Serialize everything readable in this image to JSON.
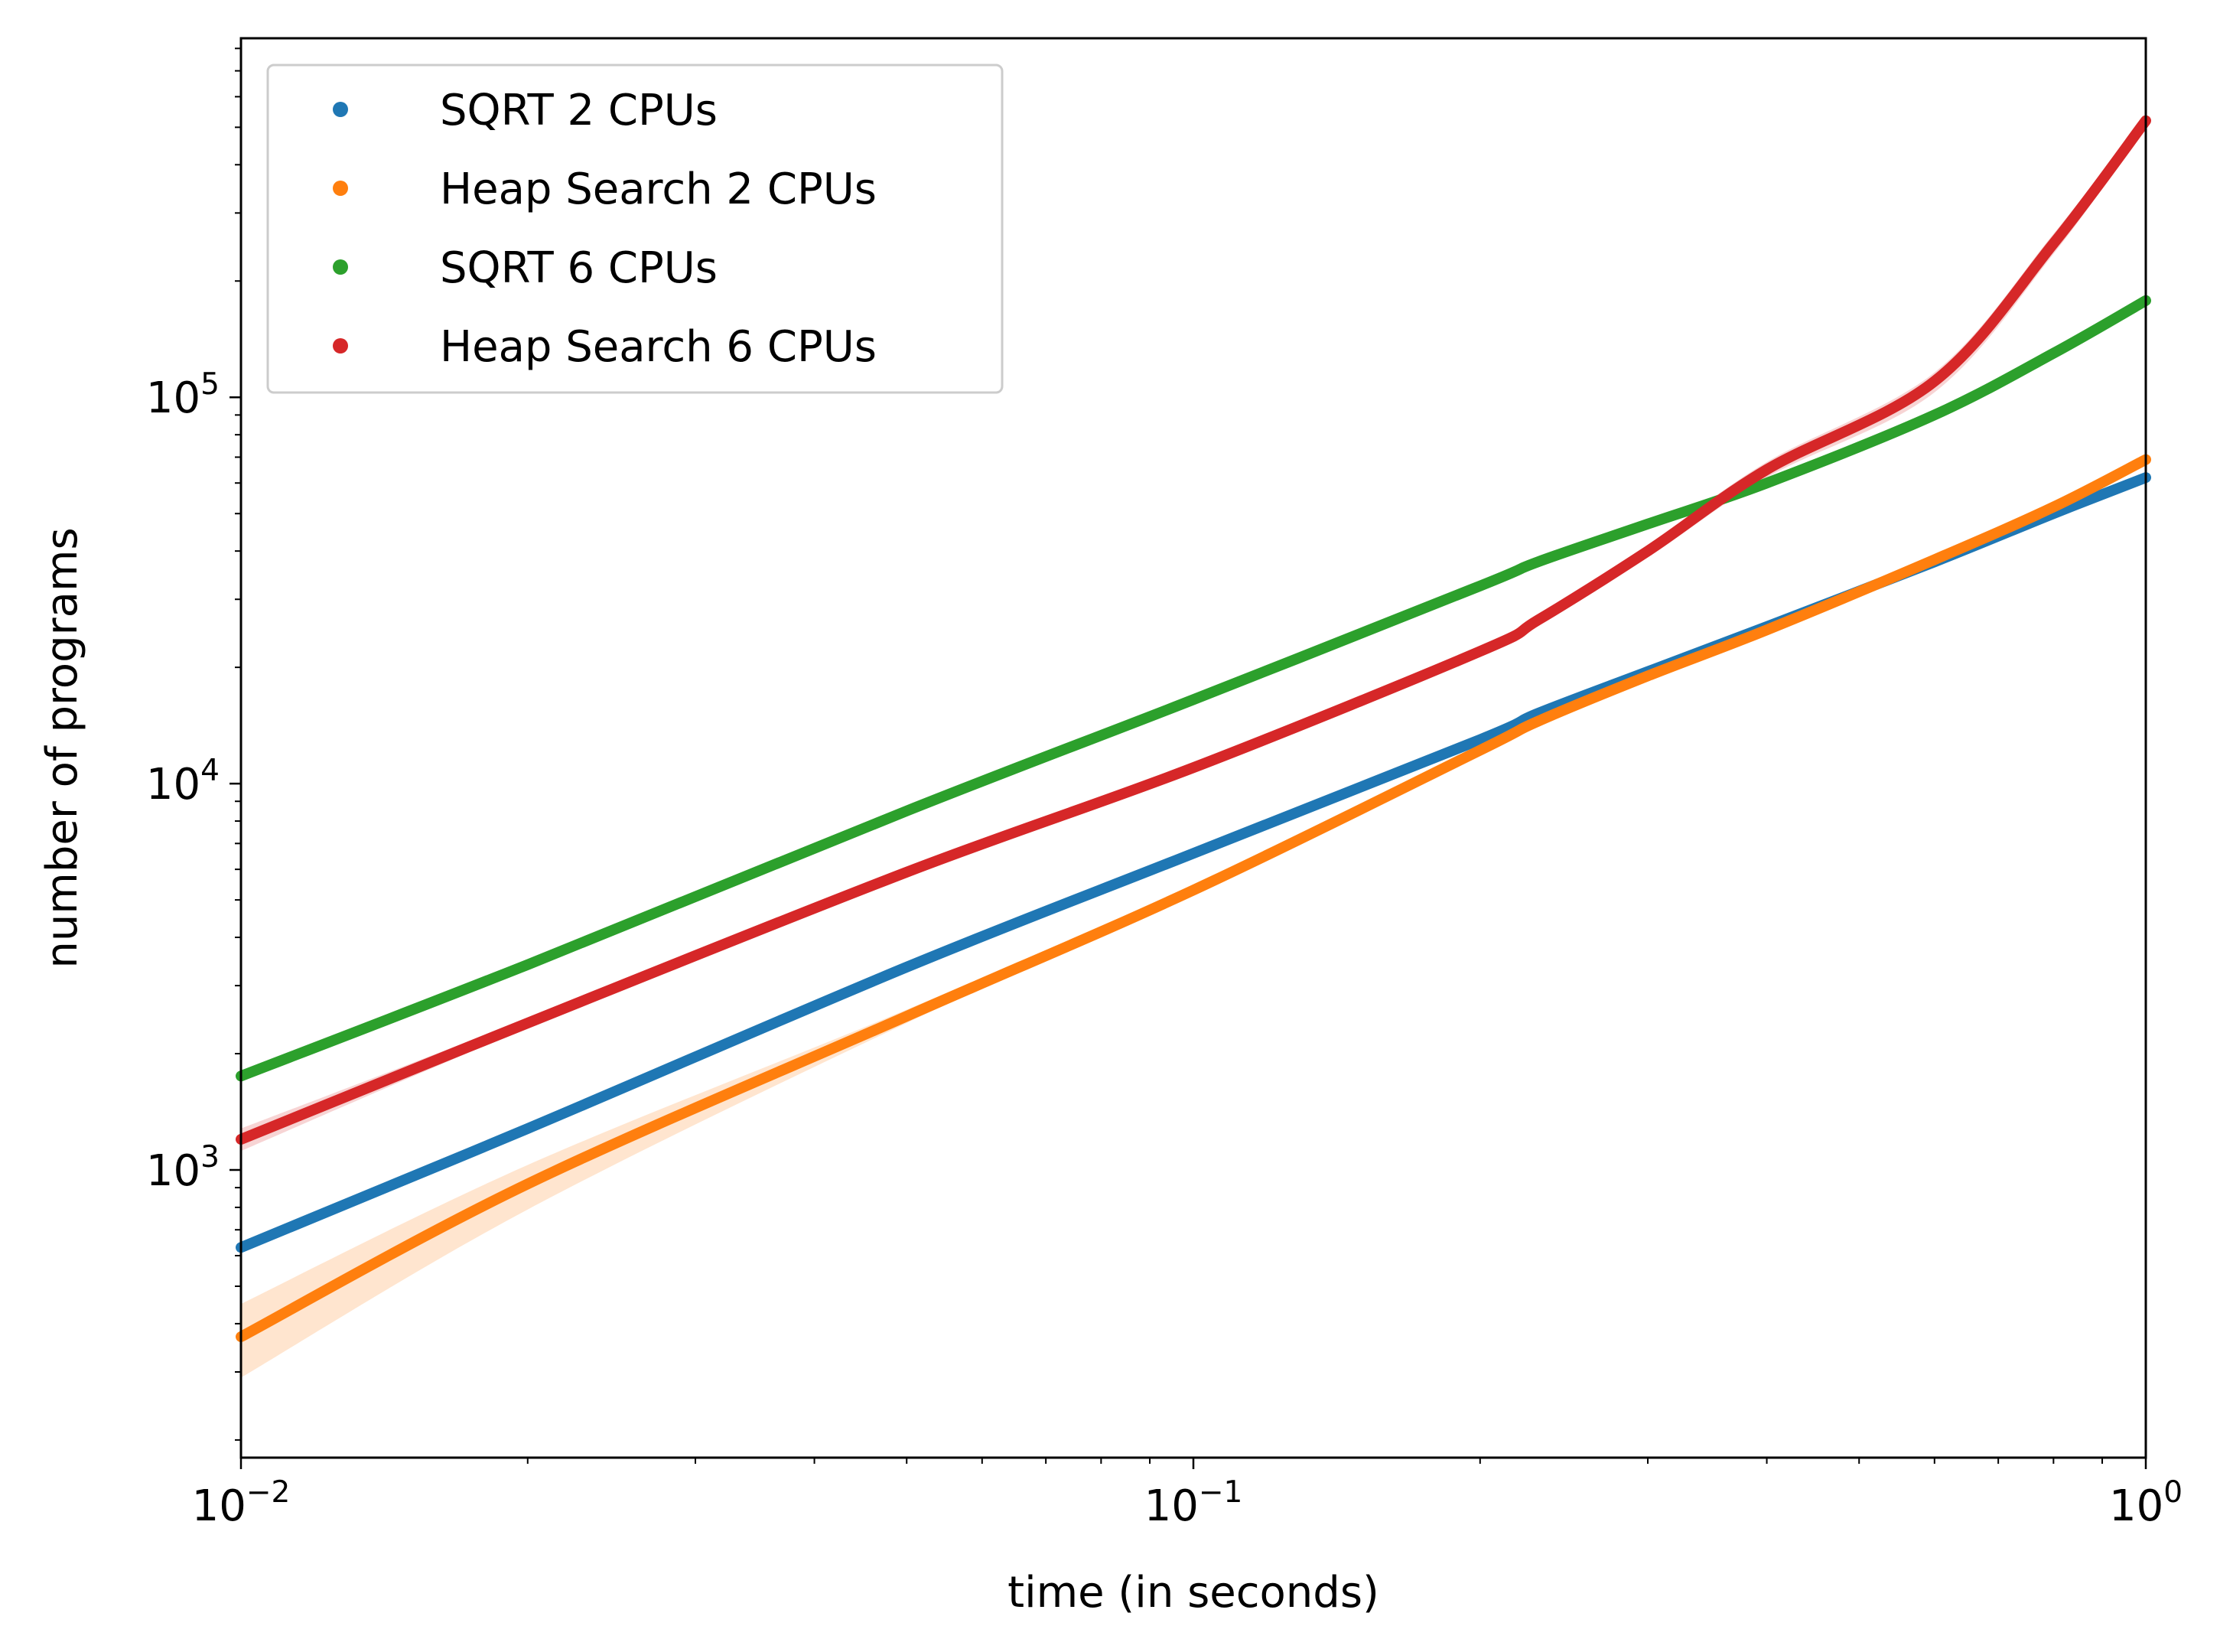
{
  "chart_data": {
    "type": "line",
    "xlabel": "time (in seconds)",
    "ylabel": "number of programs",
    "xscale": "log",
    "yscale": "log",
    "xlim": [
      0.01,
      1
    ],
    "ylim": [
      180,
      850000
    ],
    "grid": false,
    "legend_position": "top-left",
    "x_ticks": [
      {
        "value": 0.01,
        "base": "10",
        "exp": "−2"
      },
      {
        "value": 0.1,
        "base": "10",
        "exp": "−1"
      },
      {
        "value": 1,
        "base": "10",
        "exp": "0"
      }
    ],
    "y_ticks": [
      {
        "value": 1000,
        "base": "10",
        "exp": "3"
      },
      {
        "value": 10000,
        "base": "10",
        "exp": "4"
      },
      {
        "value": 100000,
        "base": "10",
        "exp": "5"
      }
    ],
    "x": [
      0.01,
      0.02,
      0.05,
      0.1,
      0.2,
      0.23,
      0.3,
      0.4,
      0.6,
      0.8,
      1.0
    ],
    "series": [
      {
        "name": "SQRT 2 CPUs",
        "color": "#1f77b4",
        "values": [
          630,
          1280,
          3350,
          6600,
          13000,
          15200,
          19500,
          25500,
          37500,
          50000,
          62000
        ]
      },
      {
        "name": "Heap Search 2 CPUs",
        "color": "#ff7f0e",
        "values": [
          370,
          920,
          2500,
          5300,
          12200,
          14500,
          19000,
          25000,
          38000,
          52000,
          69000
        ]
      },
      {
        "name": "SQRT 6 CPUs",
        "color": "#2ca02c",
        "values": [
          1750,
          3400,
          8500,
          16500,
          32500,
          37500,
          47000,
          60000,
          90000,
          130000,
          178000
        ]
      },
      {
        "name": "Heap Search 6 CPUs",
        "color": "#d62728",
        "values": [
          1200,
          2400,
          5900,
          11000,
          22000,
          26500,
          40000,
          65000,
          110000,
          250000,
          520000
        ],
        "band": {
          "lower": [
            1120,
            2330,
            5750,
            10700,
            21500,
            25800,
            38500,
            62000,
            103000,
            235000,
            500000
          ],
          "upper": [
            1280,
            2470,
            6050,
            11300,
            22600,
            27300,
            41500,
            68000,
            116000,
            265000,
            540000
          ]
        }
      }
    ],
    "band_2cpu_heap": {
      "series": "Heap Search 2 CPUs",
      "lower": [
        290,
        790,
        2400,
        5150,
        12000,
        14300,
        18800,
        24800,
        37800,
        51800,
        68500
      ],
      "upper": [
        450,
        1030,
        2600,
        5450,
        12400,
        14700,
        19200,
        25200,
        38200,
        52200,
        69500
      ]
    }
  }
}
